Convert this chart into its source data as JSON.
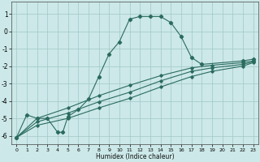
{
  "xlabel": "Humidex (Indice chaleur)",
  "bg_color": "#cce8e8",
  "grid_color": "#a0c8c8",
  "line_color": "#2a6b5e",
  "xlim": [
    -0.5,
    23.5
  ],
  "ylim": [
    -6.5,
    1.7
  ],
  "xticks": [
    0,
    1,
    2,
    3,
    4,
    5,
    6,
    7,
    8,
    9,
    10,
    11,
    12,
    13,
    14,
    15,
    16,
    17,
    18,
    19,
    20,
    21,
    22,
    23
  ],
  "yticks": [
    1,
    0,
    -1,
    -2,
    -3,
    -4,
    -5,
    -6
  ],
  "lines": [
    {
      "x": [
        0,
        1,
        2,
        3,
        4,
        4.5,
        5,
        6,
        7,
        8,
        9,
        10,
        11,
        12,
        13,
        14,
        15,
        16,
        17,
        18,
        22,
        23
      ],
      "y": [
        -6.1,
        -4.8,
        -5.0,
        -5.0,
        -5.8,
        -5.8,
        -4.9,
        -4.5,
        -3.9,
        -2.6,
        -1.3,
        -0.6,
        0.7,
        0.85,
        0.85,
        0.85,
        0.5,
        -0.3,
        -1.5,
        -1.9,
        -1.7,
        -1.6
      ]
    },
    {
      "x": [
        0,
        2,
        5,
        8,
        11,
        14,
        17,
        19,
        22,
        23
      ],
      "y": [
        -6.1,
        -5.0,
        -4.4,
        -3.7,
        -3.1,
        -2.55,
        -2.1,
        -1.95,
        -1.8,
        -1.7
      ]
    },
    {
      "x": [
        0,
        2,
        5,
        8,
        11,
        14,
        17,
        19,
        22,
        23
      ],
      "y": [
        -6.1,
        -5.2,
        -4.7,
        -4.05,
        -3.5,
        -2.85,
        -2.3,
        -2.1,
        -1.9,
        -1.75
      ]
    },
    {
      "x": [
        0,
        2,
        5,
        8,
        11,
        14,
        17,
        19,
        22,
        23
      ],
      "y": [
        -6.1,
        -5.4,
        -5.0,
        -4.4,
        -3.85,
        -3.2,
        -2.6,
        -2.3,
        -2.0,
        -1.8
      ]
    }
  ]
}
